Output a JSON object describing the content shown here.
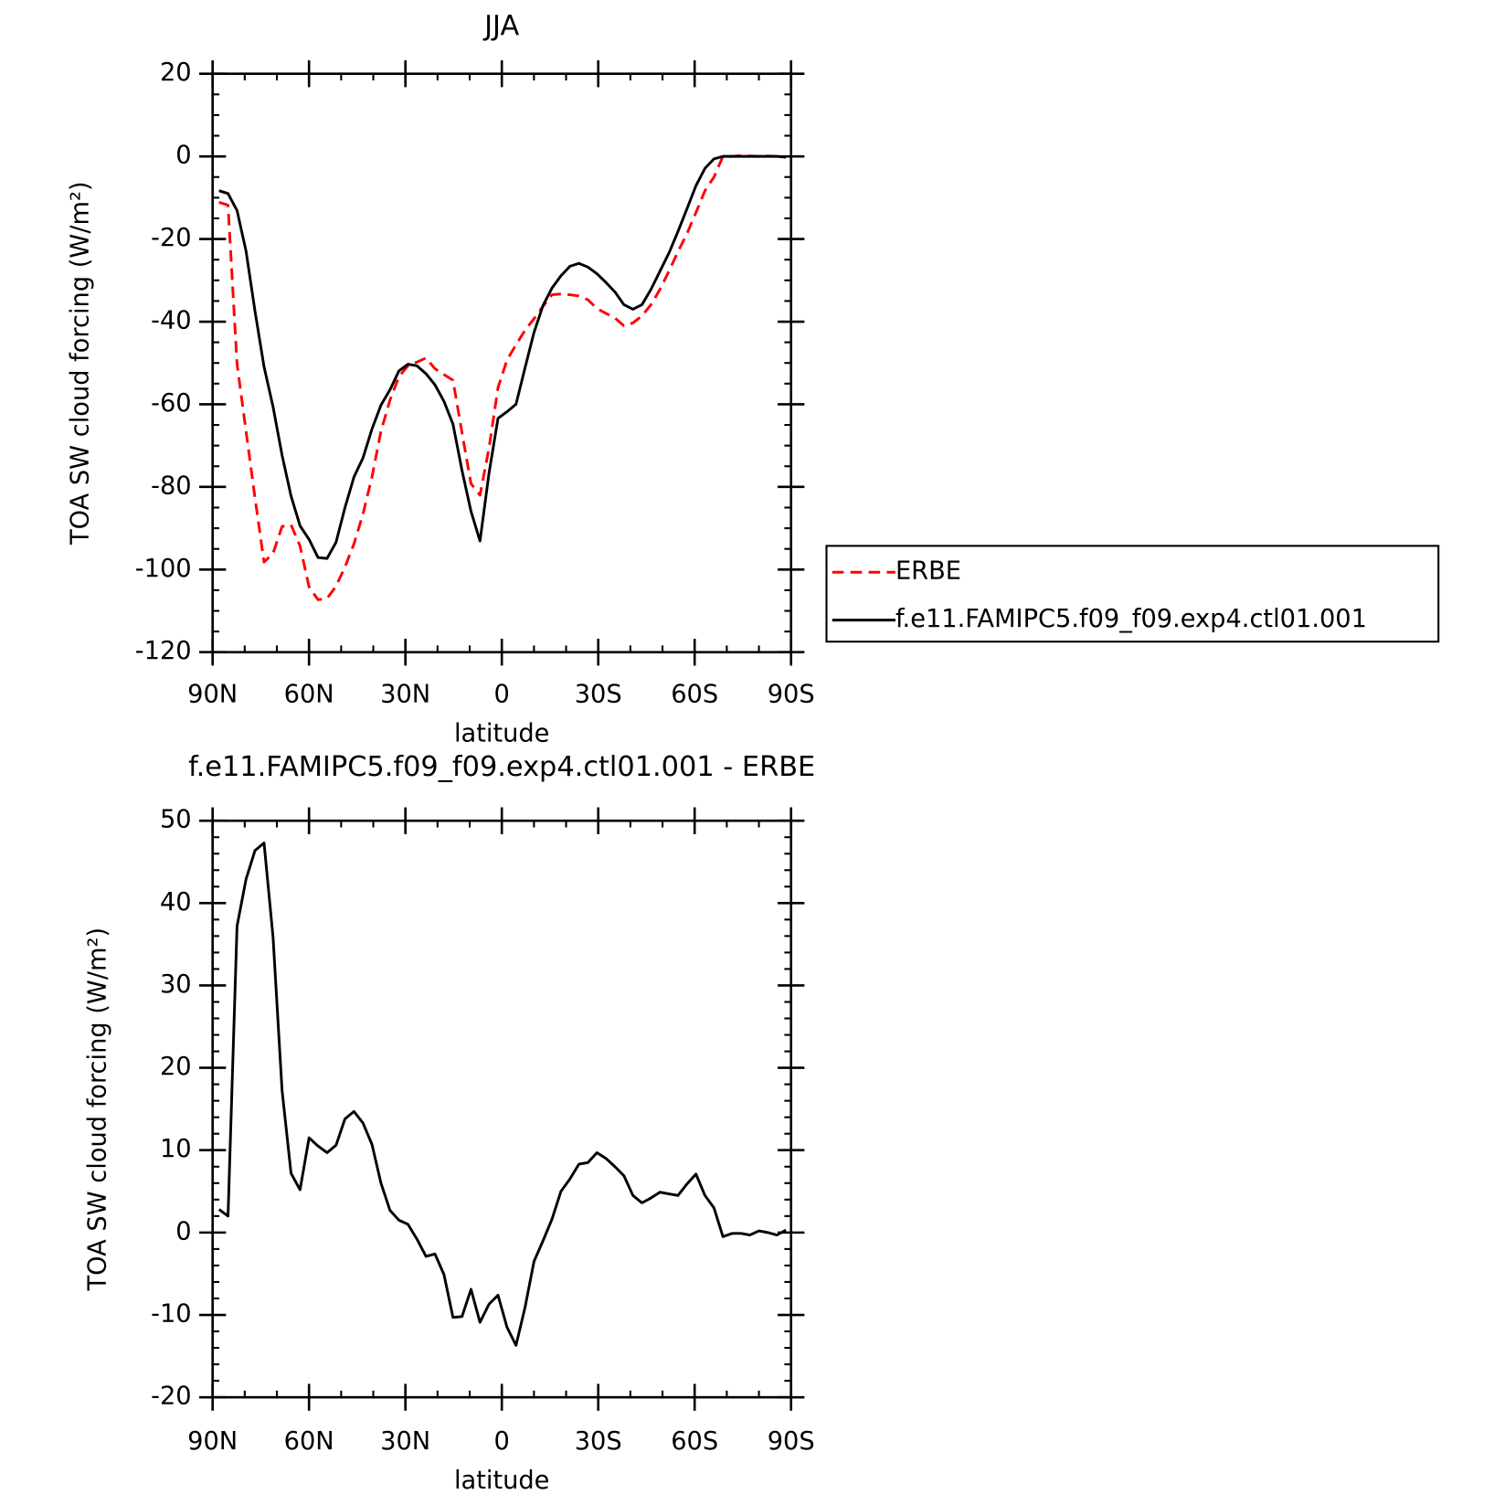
{
  "chart_data": [
    {
      "type": "line",
      "title": "JJA",
      "xlabel": "latitude",
      "ylabel": "TOA SW cloud forcing (W/m²)",
      "x": [
        88,
        85.2,
        82.4,
        79.6,
        76.8,
        74,
        71.2,
        68.4,
        65.6,
        62.8,
        60,
        57.2,
        54.4,
        51.6,
        48.8,
        46,
        43.2,
        40.4,
        37.6,
        34.8,
        32,
        29.2,
        26.4,
        23.6,
        20.8,
        18,
        15.2,
        12.4,
        9.6,
        6.8,
        4,
        1.2,
        -1.6,
        -4.4,
        -7.2,
        -10,
        -12.8,
        -15.6,
        -18.4,
        -21.2,
        -24,
        -26.8,
        -29.6,
        -32.4,
        -35.2,
        -38,
        -40.8,
        -43.6,
        -46.4,
        -49.2,
        -52,
        -54.8,
        -57.6,
        -60.4,
        -63.2,
        -66,
        -68.8,
        -71.6,
        -74.4,
        -77.2,
        -80,
        -82.8,
        -85.6,
        -88.4
      ],
      "xlim": [
        90,
        -90
      ],
      "xticks": [
        {
          "value": 90,
          "label": "90N"
        },
        {
          "value": 60,
          "label": "60N"
        },
        {
          "value": 30,
          "label": "30N"
        },
        0,
        {
          "value": -30,
          "label": "30S"
        },
        {
          "value": -60,
          "label": "60S"
        },
        {
          "value": -90,
          "label": "90S"
        }
      ],
      "ylim": [
        -120,
        20
      ],
      "yticks": [
        -120,
        -100,
        -80,
        -60,
        -40,
        -20,
        0,
        20
      ],
      "legend": "right",
      "series": [
        {
          "name": "ERBE",
          "color": "#ff0000",
          "style": "dashed",
          "values": [
            -11.1,
            -11.8,
            -50.2,
            -66.5,
            -82.7,
            -98.2,
            -96.1,
            -89.6,
            -89.2,
            -94.3,
            -104.2,
            -107.3,
            -107.0,
            -104.0,
            -99.4,
            -93.8,
            -86.6,
            -77.6,
            -66.5,
            -59.0,
            -53.3,
            -50.7,
            -49.8,
            -48.8,
            -51.4,
            -52.8,
            -54.2,
            -66.9,
            -79.2,
            -82.0,
            -70.6,
            -56.0,
            -49.3,
            -45.6,
            -42.1,
            -39.3,
            -36.3,
            -33.5,
            -33.3,
            -33.5,
            -33.8,
            -34.7,
            -36.8,
            -38.0,
            -39.1,
            -41.0,
            -40.3,
            -38.6,
            -35.9,
            -32.2,
            -27.8,
            -23.1,
            -18.7,
            -13.6,
            -8.3,
            -5.0,
            0,
            0,
            0.2,
            0.1,
            0,
            0.1,
            0,
            -0.2
          ]
        },
        {
          "name": "f.e11.FAMIPC5.f09_f09.exp4.ctl01.001",
          "color": "#000000",
          "style": "solid",
          "values": [
            -8.3,
            -9.0,
            -13.1,
            -22.9,
            -37.5,
            -50.9,
            -60.6,
            -72.3,
            -82.2,
            -89.4,
            -92.7,
            -97.1,
            -97.3,
            -93.4,
            -85.0,
            -77.6,
            -73.0,
            -66.0,
            -60.2,
            -56.5,
            -51.9,
            -50.3,
            -50.7,
            -52.6,
            -55.3,
            -59.3,
            -64.8,
            -76.0,
            -85.9,
            -93.1,
            -76.7,
            -63.4,
            -61.8,
            -60.0,
            -51.2,
            -42.6,
            -36.1,
            -31.9,
            -28.9,
            -26.6,
            -25.9,
            -26.8,
            -28.4,
            -30.5,
            -32.8,
            -35.9,
            -37.0,
            -35.9,
            -32.2,
            -27.8,
            -23.4,
            -18.2,
            -12.7,
            -7.1,
            -2.9,
            -0.6,
            0,
            0,
            0,
            0,
            0,
            0,
            0,
            -0.2
          ]
        }
      ]
    },
    {
      "type": "line",
      "title": "f.e11.FAMIPC5.f09_f09.exp4.ctl01.001 - ERBE",
      "xlabel": "latitude",
      "ylabel": "TOA SW cloud forcing (W/m²)",
      "x": [
        88,
        85.2,
        82.4,
        79.6,
        76.8,
        74,
        71.2,
        68.4,
        65.6,
        62.8,
        60,
        57.2,
        54.4,
        51.6,
        48.8,
        46,
        43.2,
        40.4,
        37.6,
        34.8,
        32,
        29.2,
        26.4,
        23.6,
        20.8,
        18,
        15.2,
        12.4,
        9.6,
        6.8,
        4,
        1.2,
        -1.6,
        -4.4,
        -7.2,
        -10,
        -12.8,
        -15.6,
        -18.4,
        -21.2,
        -24,
        -26.8,
        -29.6,
        -32.4,
        -35.2,
        -38,
        -40.8,
        -43.6,
        -46.4,
        -49.2,
        -52,
        -54.8,
        -57.6,
        -60.4,
        -63.2,
        -66,
        -68.8,
        -71.6,
        -74.4,
        -77.2,
        -80,
        -82.8,
        -85.6,
        -88.4
      ],
      "xlim": [
        90,
        -90
      ],
      "xticks": [
        {
          "value": 90,
          "label": "90N"
        },
        {
          "value": 60,
          "label": "60N"
        },
        {
          "value": 30,
          "label": "30N"
        },
        0,
        {
          "value": -30,
          "label": "30S"
        },
        {
          "value": -60,
          "label": "60S"
        },
        {
          "value": -90,
          "label": "90S"
        }
      ],
      "ylim": [
        -20,
        50
      ],
      "yticks": [
        -20,
        -10,
        0,
        10,
        20,
        30,
        40,
        50
      ],
      "series": [
        {
          "color": "#000000",
          "style": "solid",
          "values": [
            2.8,
            2.0,
            37.2,
            42.9,
            46.4,
            47.3,
            35.9,
            17.3,
            7.2,
            5.2,
            11.5,
            10.5,
            9.7,
            10.6,
            13.8,
            14.7,
            13.3,
            10.7,
            6.0,
            2.7,
            1.5,
            1.0,
            -0.8,
            -2.9,
            -2.6,
            -5.1,
            -10.3,
            -10.2,
            -6.9,
            -10.9,
            -8.7,
            -7.6,
            -11.5,
            -13.7,
            -9.1,
            -3.5,
            -1.0,
            1.6,
            5.0,
            6.5,
            8.3,
            8.5,
            9.7,
            9.0,
            8.0,
            6.9,
            4.5,
            3.6,
            4.2,
            4.9,
            4.7,
            4.5,
            5.9,
            7.1,
            4.5,
            3.0,
            -0.5,
            -0.1,
            -0.1,
            -0.3,
            0.2,
            0.0,
            -0.3,
            0.3
          ]
        }
      ]
    }
  ]
}
